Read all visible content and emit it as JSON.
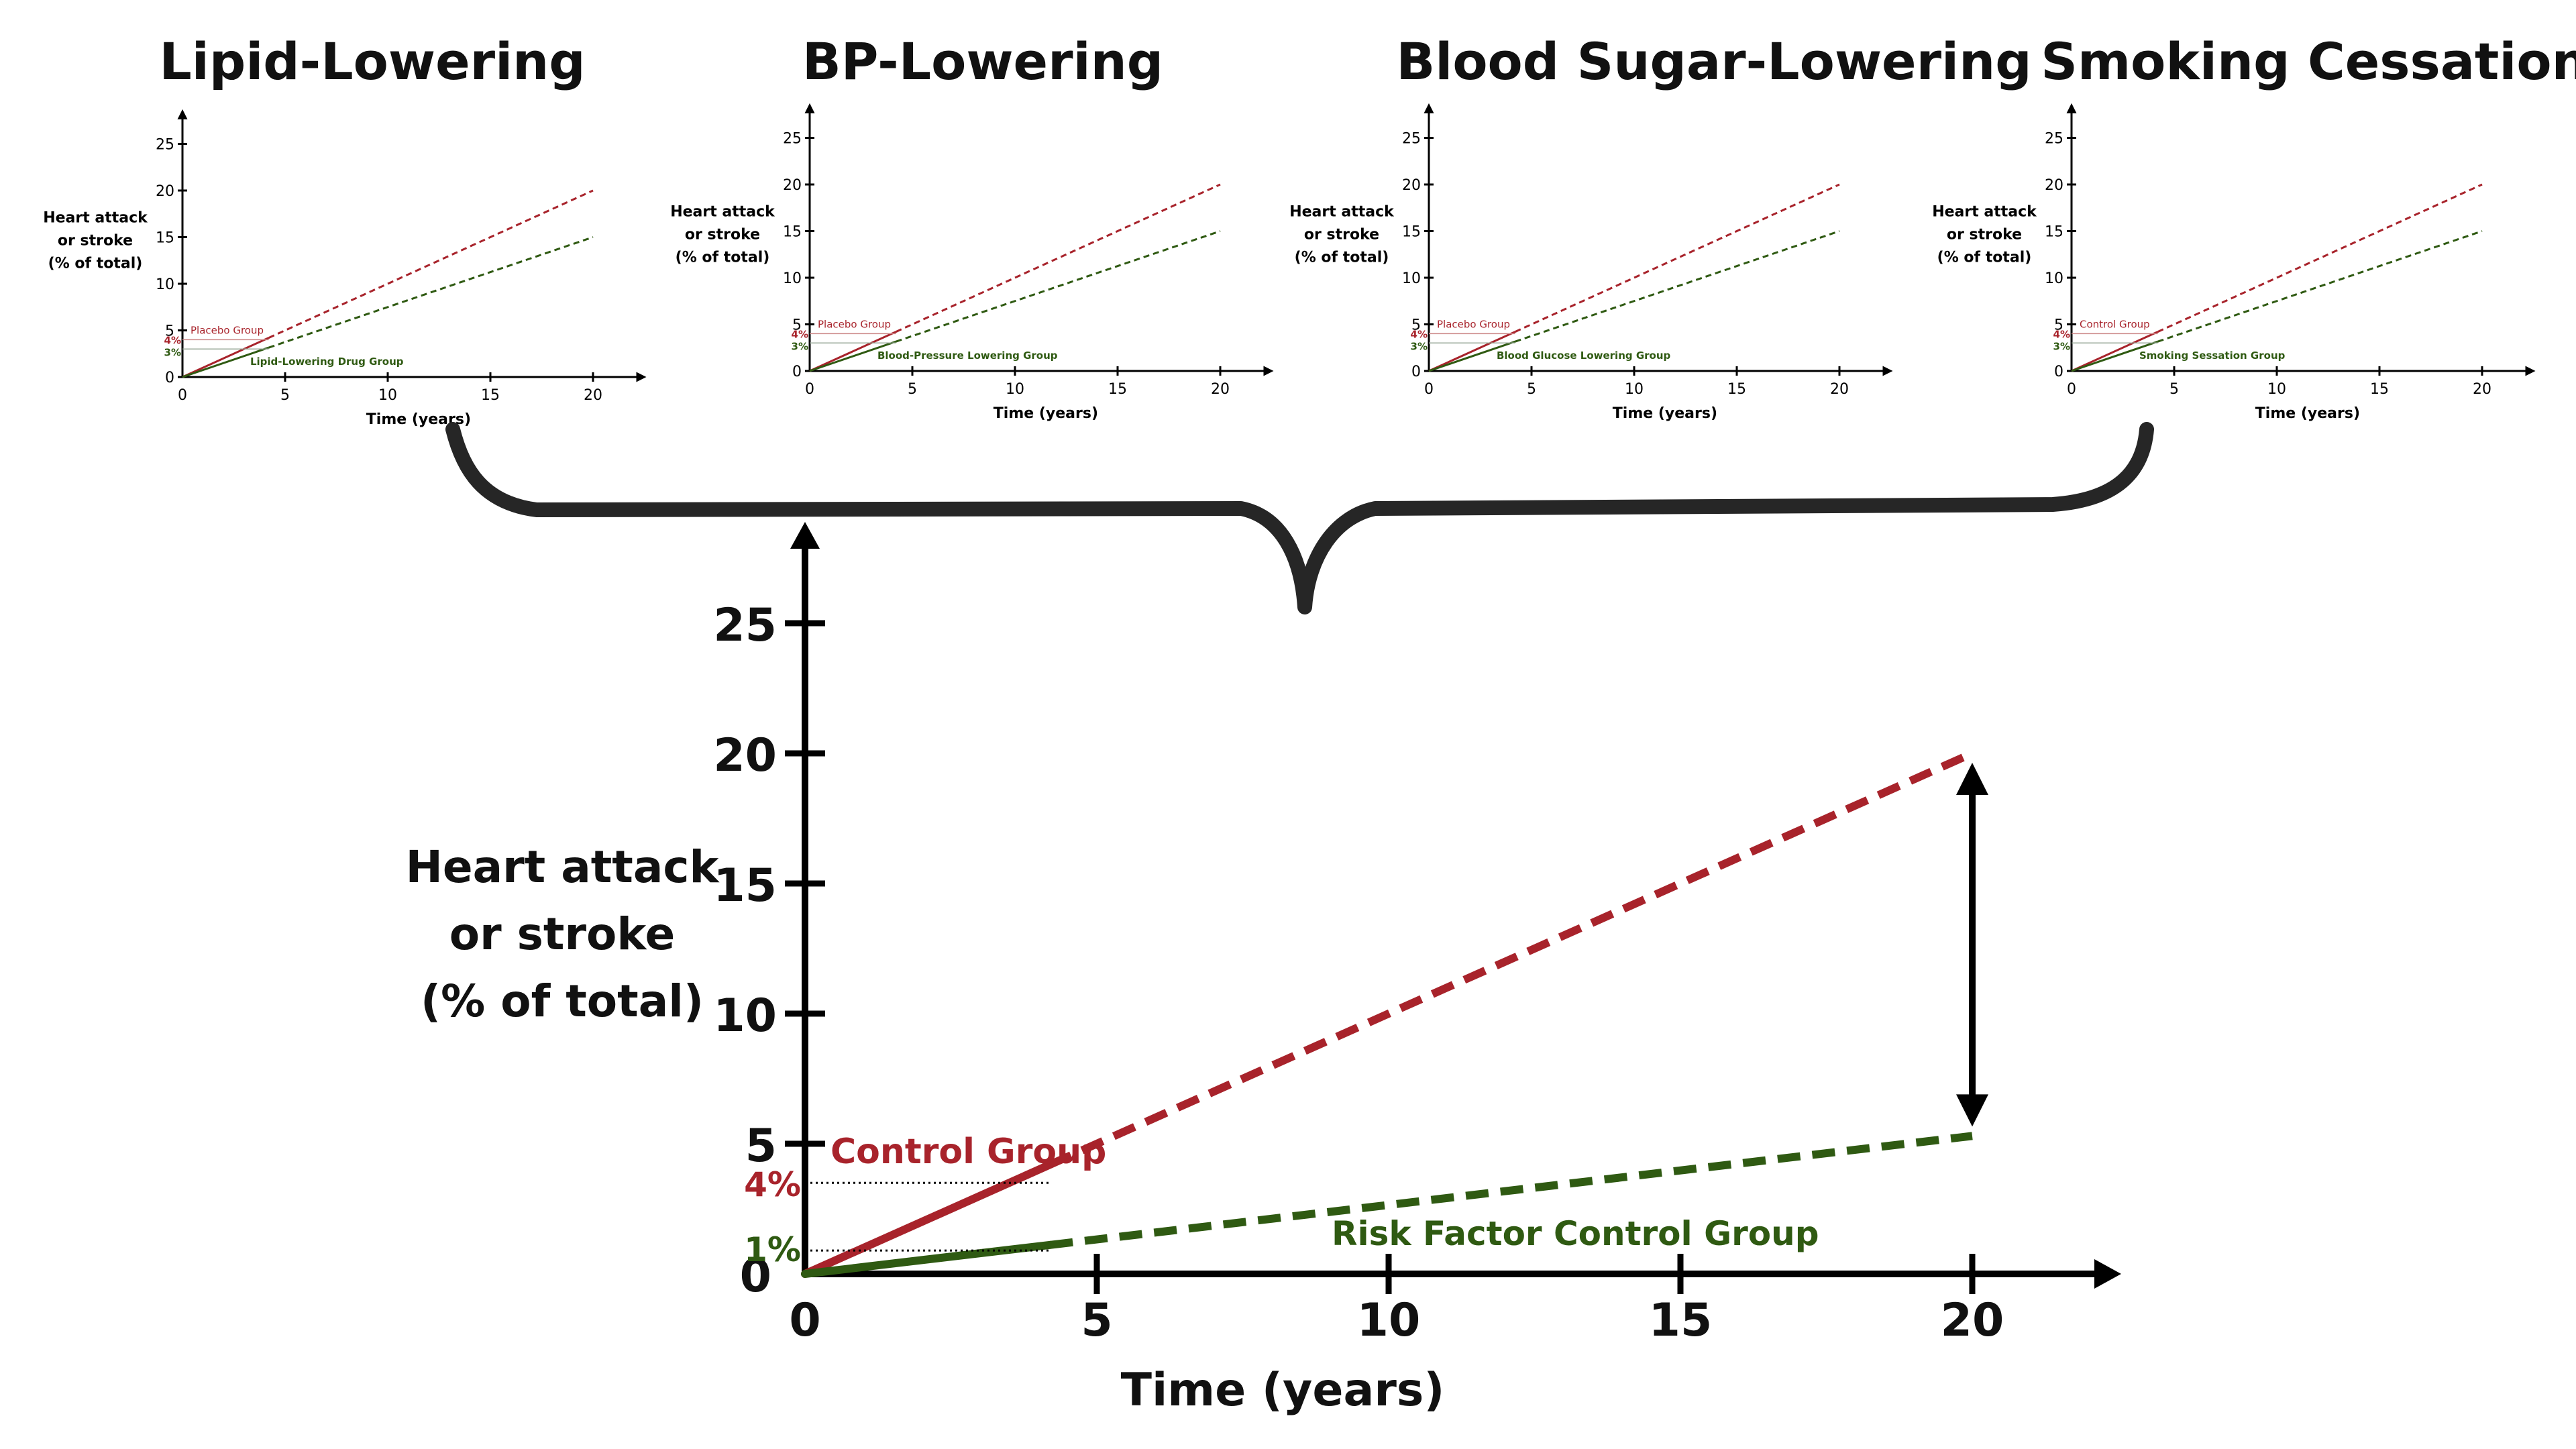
{
  "colors": {
    "placebo": "#a8232b",
    "treated": "#2f5a12",
    "axis": "#000000",
    "brace": "#262626"
  },
  "small_charts": [
    {
      "title": "Lipid-Lowering",
      "ylabel": [
        "Heart attack",
        "or stroke",
        "(% of total)"
      ],
      "xlabel": "Time (years)",
      "placebo_label": "Placebo Group",
      "treated_label": "Lipid-Lowering Drug Group",
      "placebo_marker_label": "4%",
      "treated_marker_label": "3%",
      "placebo_marker": 4,
      "treated_marker": 3,
      "solid_end_x": 4.2,
      "placebo_end": 20,
      "treated_end": 15
    },
    {
      "title": "BP-Lowering",
      "ylabel": [
        "Heart attack",
        "or stroke",
        "(% of total)"
      ],
      "xlabel": "Time (years)",
      "placebo_label": "Placebo Group",
      "treated_label": "Blood-Pressure Lowering Group",
      "placebo_marker_label": "4%",
      "treated_marker_label": "3%",
      "placebo_marker": 4,
      "treated_marker": 3,
      "solid_end_x": 4.2,
      "placebo_end": 20,
      "treated_end": 15
    },
    {
      "title": "Blood Sugar-Lowering",
      "ylabel": [
        "Heart attack",
        "or stroke",
        "(% of total)"
      ],
      "xlabel": "Time (years)",
      "placebo_label": "Placebo Group",
      "treated_label": "Blood Glucose Lowering Group",
      "placebo_marker_label": "4%",
      "treated_marker_label": "3%",
      "placebo_marker": 4,
      "treated_marker": 3,
      "solid_end_x": 4.2,
      "placebo_end": 20,
      "treated_end": 15
    },
    {
      "title": "Smoking Cessation",
      "ylabel": [
        "Heart attack",
        "or stroke",
        "(% of total)"
      ],
      "xlabel": "Time (years)",
      "placebo_label": "Control Group",
      "treated_label": "Smoking Sessation Group",
      "placebo_marker_label": "4%",
      "treated_marker_label": "3%",
      "placebo_marker": 4,
      "treated_marker": 3,
      "solid_end_x": 4.2,
      "placebo_end": 20,
      "treated_end": 15
    }
  ],
  "main_chart": {
    "ylabel": [
      "Heart attack",
      "or stroke",
      "(% of total)"
    ],
    "xlabel": "Time (years)",
    "control_label": "Control Group",
    "treated_label": "Risk Factor Control Group",
    "control_marker_label": "4%",
    "treated_marker_label": "1%",
    "control_marker": 3.5,
    "treated_marker": 0.9,
    "solid_end_x": 4.2,
    "control_end": 20,
    "treated_end": 5.3
  },
  "chart_data": [
    {
      "type": "line",
      "title": "Lipid-Lowering",
      "xlabel": "Time (years)",
      "ylabel": "Heart attack or stroke (% of total)",
      "x": [
        0,
        20
      ],
      "series": [
        {
          "name": "Placebo Group",
          "values": [
            0,
            20
          ]
        },
        {
          "name": "Lipid-Lowering Drug Group",
          "values": [
            0,
            15
          ]
        }
      ],
      "xticks": [
        0,
        5,
        10,
        15,
        20
      ],
      "yticks": [
        0,
        5,
        10,
        15,
        20,
        25
      ],
      "xlim": [
        0,
        22
      ],
      "ylim": [
        0,
        28
      ]
    },
    {
      "type": "line",
      "title": "BP-Lowering",
      "xlabel": "Time (years)",
      "ylabel": "Heart attack or stroke (% of total)",
      "x": [
        0,
        20
      ],
      "series": [
        {
          "name": "Placebo Group",
          "values": [
            0,
            20
          ]
        },
        {
          "name": "Blood-Pressure Lowering Group",
          "values": [
            0,
            15
          ]
        }
      ],
      "xticks": [
        0,
        5,
        10,
        15,
        20
      ],
      "yticks": [
        0,
        5,
        10,
        15,
        20,
        25
      ],
      "xlim": [
        0,
        22
      ],
      "ylim": [
        0,
        28
      ]
    },
    {
      "type": "line",
      "title": "Blood Sugar-Lowering",
      "xlabel": "Time (years)",
      "ylabel": "Heart attack or stroke (% of total)",
      "x": [
        0,
        20
      ],
      "series": [
        {
          "name": "Placebo Group",
          "values": [
            0,
            20
          ]
        },
        {
          "name": "Blood Glucose Lowering Group",
          "values": [
            0,
            15
          ]
        }
      ],
      "xticks": [
        0,
        5,
        10,
        15,
        20
      ],
      "yticks": [
        0,
        5,
        10,
        15,
        20,
        25
      ],
      "xlim": [
        0,
        22
      ],
      "ylim": [
        0,
        28
      ]
    },
    {
      "type": "line",
      "title": "Smoking Cessation",
      "xlabel": "Time (years)",
      "ylabel": "Heart attack or stroke (% of total)",
      "x": [
        0,
        20
      ],
      "series": [
        {
          "name": "Control Group",
          "values": [
            0,
            20
          ]
        },
        {
          "name": "Smoking Sessation Group",
          "values": [
            0,
            15
          ]
        }
      ],
      "xticks": [
        0,
        5,
        10,
        15,
        20
      ],
      "yticks": [
        0,
        5,
        10,
        15,
        20,
        25
      ],
      "xlim": [
        0,
        22
      ],
      "ylim": [
        0,
        28
      ]
    },
    {
      "type": "line",
      "title": "",
      "xlabel": "Time (years)",
      "ylabel": "Heart attack or stroke (% of total)",
      "x": [
        0,
        20
      ],
      "series": [
        {
          "name": "Control Group",
          "values": [
            0,
            20
          ]
        },
        {
          "name": "Risk Factor Control Group",
          "values": [
            0,
            5.3
          ]
        }
      ],
      "xticks": [
        0,
        5,
        10,
        15,
        20
      ],
      "yticks": [
        0,
        5,
        10,
        15,
        20,
        25
      ],
      "xlim": [
        0,
        22.5
      ],
      "ylim": [
        0,
        29
      ],
      "annotations": [
        "4%",
        "1%"
      ]
    }
  ]
}
